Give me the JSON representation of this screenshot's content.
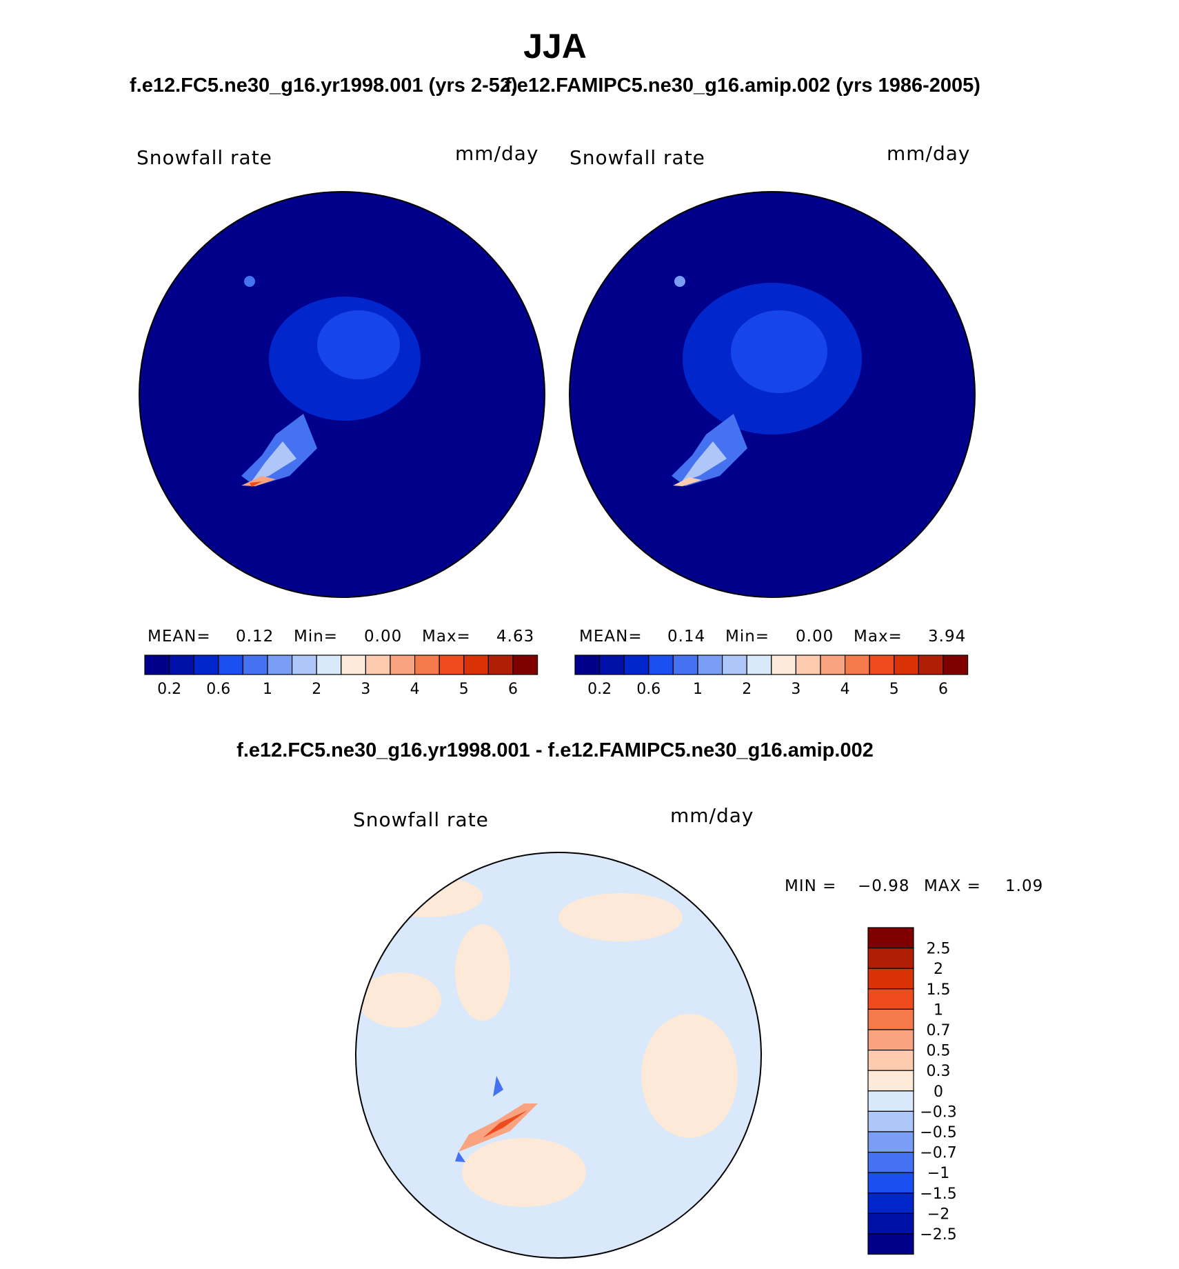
{
  "title": "JJA",
  "panels": [
    {
      "case_title": "f.e12.FC5.ne30_g16.yr1998.001 (yrs 2-52)",
      "variable": "Snowfall rate",
      "units": "mm/day",
      "stats": {
        "mean_label": "MEAN=",
        "mean": "0.12",
        "min_label": "Min=",
        "min": "0.00",
        "max_label": "Max=",
        "max": "4.63"
      }
    },
    {
      "case_title": "f.e12.FAMIPC5.ne30_g16.amip.002 (yrs 1986-2005)",
      "variable": "Snowfall rate",
      "units": "mm/day",
      "stats": {
        "mean_label": "MEAN=",
        "mean": "0.14",
        "min_label": "Min=",
        "min": "0.00",
        "max_label": "Max=",
        "max": "3.94"
      }
    }
  ],
  "colorbar": {
    "colors": [
      "#00008b",
      "#0011a8",
      "#0026cc",
      "#1c4ff2",
      "#4472f0",
      "#7a9df5",
      "#aec6f8",
      "#d9e8fb",
      "#fde9d8",
      "#fccbb0",
      "#f9a380",
      "#f57a4b",
      "#f04b1e",
      "#d83206",
      "#b01f04",
      "#800000"
    ],
    "tick_labels": [
      "0.2",
      "0.6",
      "1",
      "2",
      "3",
      "4",
      "5",
      "6"
    ]
  },
  "difference": {
    "title": "f.e12.FC5.ne30_g16.yr1998.001 - f.e12.FAMIPC5.ne30_g16.amip.002",
    "variable": "Snowfall rate",
    "units": "mm/day",
    "min_label": "MIN =",
    "min": "−0.98",
    "max_label": "MAX =",
    "max": "1.09",
    "colors": [
      "#800000",
      "#b01f04",
      "#d83206",
      "#f04b1e",
      "#f57a4b",
      "#f9a380",
      "#fccbb0",
      "#fde9d8",
      "#d9e8fb",
      "#aec6f8",
      "#7a9df5",
      "#4472f0",
      "#1c4ff2",
      "#0026cc",
      "#0011a8",
      "#00008b"
    ],
    "tick_labels": [
      "2.5",
      "2",
      "1.5",
      "1",
      "0.7",
      "0.5",
      "0.3",
      "0",
      "−0.3",
      "−0.5",
      "−0.7",
      "−1",
      "−1.5",
      "−2",
      "−2.5"
    ]
  }
}
